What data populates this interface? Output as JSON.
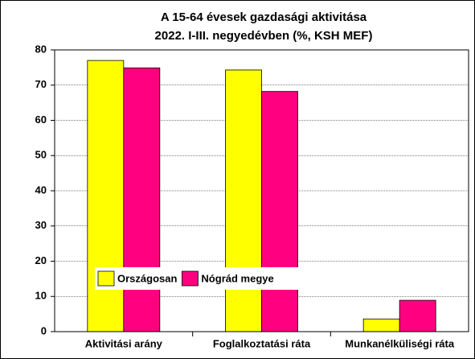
{
  "chart_data": {
    "type": "bar",
    "title": [
      "A 15-64 évesek gazdasági aktivitása",
      "2022. I-III. negyedévben (%, KSH MEF)"
    ],
    "categories": [
      "Aktivitási arány",
      "Foglalkoztatási ráta",
      "Munkanélküliségi ráta"
    ],
    "series": [
      {
        "name": "Országosan",
        "color": "#ffff00",
        "values": [
          77.0,
          74.3,
          3.6
        ]
      },
      {
        "name": "Nógrád megye",
        "color": "#ff0080",
        "values": [
          74.9,
          68.2,
          8.9
        ]
      }
    ],
    "ylim": [
      0,
      80
    ],
    "yticks": [
      0,
      10,
      20,
      30,
      40,
      50,
      60,
      70,
      80
    ],
    "grid": true,
    "legend": "lower left"
  }
}
